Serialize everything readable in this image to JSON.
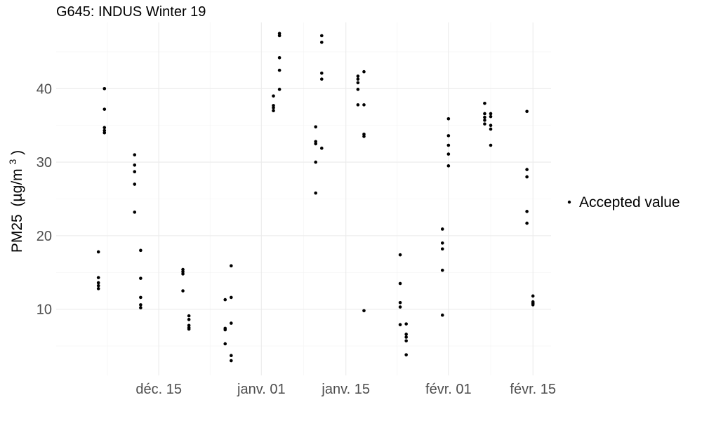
{
  "chart_data": {
    "type": "scatter",
    "title": "G645: INDUS Winter 19",
    "xlabel": "",
    "ylabel": "PM25",
    "ylabel_unit_prefix": "(µg/m",
    "ylabel_unit_exp": "3",
    "ylabel_unit_suffix": ")",
    "x_axis_type": "date",
    "xlim": [
      "2019-11-28",
      "2020-02-18"
    ],
    "ylim": [
      1,
      49
    ],
    "x_ticks": [
      {
        "date": "2019-12-15",
        "label": "déc. 15"
      },
      {
        "date": "2020-01-01",
        "label": "janv. 01"
      },
      {
        "date": "2020-01-15",
        "label": "janv. 15"
      },
      {
        "date": "2020-02-01",
        "label": "févr. 01"
      },
      {
        "date": "2020-02-15",
        "label": "févr. 15"
      }
    ],
    "y_ticks": [
      10,
      20,
      30,
      40
    ],
    "grid": true,
    "legend": {
      "position": "right",
      "entries": [
        "Accepted value"
      ]
    },
    "point_color": "#000000",
    "series": [
      {
        "name": "Accepted value",
        "points": [
          {
            "x": "2019-12-05",
            "y": 17.8
          },
          {
            "x": "2019-12-05",
            "y": 14.3
          },
          {
            "x": "2019-12-05",
            "y": 13.6
          },
          {
            "x": "2019-12-05",
            "y": 13.2
          },
          {
            "x": "2019-12-05",
            "y": 12.8
          },
          {
            "x": "2019-12-06",
            "y": 40.0
          },
          {
            "x": "2019-12-06",
            "y": 37.2
          },
          {
            "x": "2019-12-06",
            "y": 34.7
          },
          {
            "x": "2019-12-06",
            "y": 34.3
          },
          {
            "x": "2019-12-06",
            "y": 34.0
          },
          {
            "x": "2019-12-11",
            "y": 31.0
          },
          {
            "x": "2019-12-11",
            "y": 29.6
          },
          {
            "x": "2019-12-11",
            "y": 28.7
          },
          {
            "x": "2019-12-11",
            "y": 27.0
          },
          {
            "x": "2019-12-11",
            "y": 23.2
          },
          {
            "x": "2019-12-12",
            "y": 18.0
          },
          {
            "x": "2019-12-12",
            "y": 14.2
          },
          {
            "x": "2019-12-12",
            "y": 11.6
          },
          {
            "x": "2019-12-12",
            "y": 10.6
          },
          {
            "x": "2019-12-12",
            "y": 10.2
          },
          {
            "x": "2019-12-19",
            "y": 15.4
          },
          {
            "x": "2019-12-19",
            "y": 15.1
          },
          {
            "x": "2019-12-19",
            "y": 14.8
          },
          {
            "x": "2019-12-19",
            "y": 12.5
          },
          {
            "x": "2019-12-20",
            "y": 9.1
          },
          {
            "x": "2019-12-20",
            "y": 8.6
          },
          {
            "x": "2019-12-20",
            "y": 7.8
          },
          {
            "x": "2019-12-20",
            "y": 7.5
          },
          {
            "x": "2019-12-20",
            "y": 7.3
          },
          {
            "x": "2019-12-26",
            "y": 11.3
          },
          {
            "x": "2019-12-26",
            "y": 7.4
          },
          {
            "x": "2019-12-26",
            "y": 7.2
          },
          {
            "x": "2019-12-26",
            "y": 5.3
          },
          {
            "x": "2019-12-27",
            "y": 15.9
          },
          {
            "x": "2019-12-27",
            "y": 11.6
          },
          {
            "x": "2019-12-27",
            "y": 8.1
          },
          {
            "x": "2019-12-27",
            "y": 3.7
          },
          {
            "x": "2019-12-27",
            "y": 3.0
          },
          {
            "x": "2020-01-03",
            "y": 39.0
          },
          {
            "x": "2020-01-03",
            "y": 37.7
          },
          {
            "x": "2020-01-03",
            "y": 37.4
          },
          {
            "x": "2020-01-03",
            "y": 37.0
          },
          {
            "x": "2020-01-04",
            "y": 47.5
          },
          {
            "x": "2020-01-04",
            "y": 47.2
          },
          {
            "x": "2020-01-04",
            "y": 44.2
          },
          {
            "x": "2020-01-04",
            "y": 42.5
          },
          {
            "x": "2020-01-04",
            "y": 39.9
          },
          {
            "x": "2020-01-10",
            "y": 34.8
          },
          {
            "x": "2020-01-10",
            "y": 32.8
          },
          {
            "x": "2020-01-10",
            "y": 32.5
          },
          {
            "x": "2020-01-10",
            "y": 30.0
          },
          {
            "x": "2020-01-10",
            "y": 25.8
          },
          {
            "x": "2020-01-11",
            "y": 47.2
          },
          {
            "x": "2020-01-11",
            "y": 46.3
          },
          {
            "x": "2020-01-11",
            "y": 42.1
          },
          {
            "x": "2020-01-11",
            "y": 41.3
          },
          {
            "x": "2020-01-11",
            "y": 31.9
          },
          {
            "x": "2020-01-17",
            "y": 41.7
          },
          {
            "x": "2020-01-17",
            "y": 41.3
          },
          {
            "x": "2020-01-17",
            "y": 40.8
          },
          {
            "x": "2020-01-17",
            "y": 39.9
          },
          {
            "x": "2020-01-17",
            "y": 37.8
          },
          {
            "x": "2020-01-18",
            "y": 42.3
          },
          {
            "x": "2020-01-18",
            "y": 37.8
          },
          {
            "x": "2020-01-18",
            "y": 33.8
          },
          {
            "x": "2020-01-18",
            "y": 33.5
          },
          {
            "x": "2020-01-18",
            "y": 9.8
          },
          {
            "x": "2020-01-24",
            "y": 17.4
          },
          {
            "x": "2020-01-24",
            "y": 13.5
          },
          {
            "x": "2020-01-24",
            "y": 10.9
          },
          {
            "x": "2020-01-24",
            "y": 10.3
          },
          {
            "x": "2020-01-24",
            "y": 7.9
          },
          {
            "x": "2020-01-25",
            "y": 8.0
          },
          {
            "x": "2020-01-25",
            "y": 6.6
          },
          {
            "x": "2020-01-25",
            "y": 6.2
          },
          {
            "x": "2020-01-25",
            "y": 5.7
          },
          {
            "x": "2020-01-25",
            "y": 3.8
          },
          {
            "x": "2020-01-31",
            "y": 20.9
          },
          {
            "x": "2020-01-31",
            "y": 19.0
          },
          {
            "x": "2020-01-31",
            "y": 18.2
          },
          {
            "x": "2020-01-31",
            "y": 15.3
          },
          {
            "x": "2020-01-31",
            "y": 9.2
          },
          {
            "x": "2020-02-01",
            "y": 35.9
          },
          {
            "x": "2020-02-01",
            "y": 33.6
          },
          {
            "x": "2020-02-01",
            "y": 32.3
          },
          {
            "x": "2020-02-01",
            "y": 31.1
          },
          {
            "x": "2020-02-01",
            "y": 29.5
          },
          {
            "x": "2020-02-07",
            "y": 38.0
          },
          {
            "x": "2020-02-07",
            "y": 36.6
          },
          {
            "x": "2020-02-07",
            "y": 36.1
          },
          {
            "x": "2020-02-07",
            "y": 35.7
          },
          {
            "x": "2020-02-07",
            "y": 35.2
          },
          {
            "x": "2020-02-08",
            "y": 36.6
          },
          {
            "x": "2020-02-08",
            "y": 36.2
          },
          {
            "x": "2020-02-08",
            "y": 35.0
          },
          {
            "x": "2020-02-08",
            "y": 34.5
          },
          {
            "x": "2020-02-08",
            "y": 32.3
          },
          {
            "x": "2020-02-14",
            "y": 36.9
          },
          {
            "x": "2020-02-14",
            "y": 29.0
          },
          {
            "x": "2020-02-14",
            "y": 28.0
          },
          {
            "x": "2020-02-14",
            "y": 23.3
          },
          {
            "x": "2020-02-14",
            "y": 21.7
          },
          {
            "x": "2020-02-15",
            "y": 11.8
          },
          {
            "x": "2020-02-15",
            "y": 11.0
          },
          {
            "x": "2020-02-15",
            "y": 10.8
          },
          {
            "x": "2020-02-15",
            "y": 10.6
          }
        ]
      }
    ]
  }
}
